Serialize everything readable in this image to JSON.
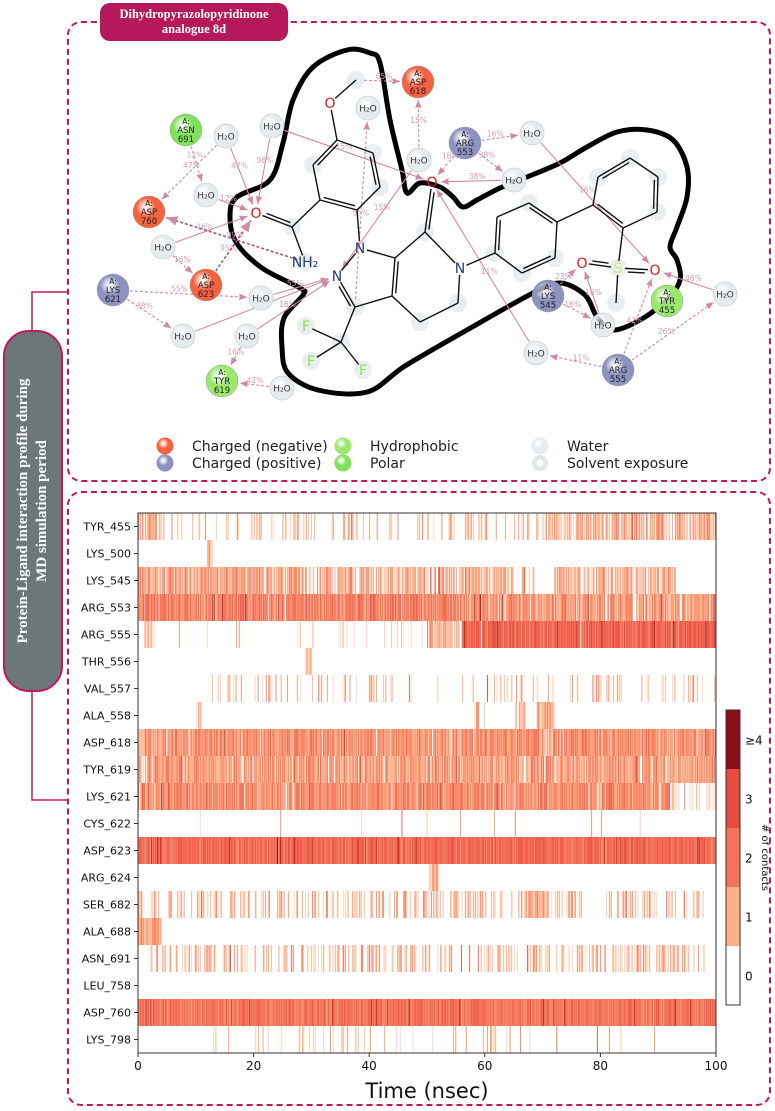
{
  "title_pill": {
    "line1": "Dihydropyrazolopyridinone",
    "line2": "analogue 8d"
  },
  "side_label": {
    "line1": "Protein-Ligand interaction profile during",
    "line2": "MD simulation period"
  },
  "diagram": {
    "colors": {
      "negative": "#f4623f",
      "positive": "#8e92c0",
      "hydrophobic": "#9be86c",
      "polar": "#7ee35a",
      "water": "#e6ebee",
      "interaction": "#d08aa8"
    },
    "residues": [
      {
        "id": "ASN691",
        "chain": "A:",
        "name": "ASN",
        "num": "691",
        "type": "polar"
      },
      {
        "id": "ASP618",
        "chain": "A:",
        "name": "ASP",
        "num": "618",
        "type": "negative"
      },
      {
        "id": "ARG553",
        "chain": "A:",
        "name": "ARG",
        "num": "553",
        "type": "positive"
      },
      {
        "id": "ASP760",
        "chain": "A:",
        "name": "ASP",
        "num": "760",
        "type": "negative"
      },
      {
        "id": "LYS621",
        "chain": "A:",
        "name": "LYS",
        "num": "621",
        "type": "positive"
      },
      {
        "id": "ASP623",
        "chain": "A:",
        "name": "ASP",
        "num": "623",
        "type": "negative"
      },
      {
        "id": "TYR619",
        "chain": "A:",
        "name": "TYR",
        "num": "619",
        "type": "hydrophobic"
      },
      {
        "id": "LYS545",
        "chain": "A:",
        "name": "LYS",
        "num": "545",
        "type": "positive"
      },
      {
        "id": "TYR455",
        "chain": "A:",
        "name": "TYR",
        "num": "455",
        "type": "hydrophobic"
      },
      {
        "id": "ARG555",
        "chain": "A:",
        "name": "ARG",
        "num": "555",
        "type": "positive"
      }
    ],
    "water_label": "H₂O",
    "ligand_atom_labels": [
      "O",
      "",
      "",
      "",
      "",
      "",
      "",
      "",
      "",
      "O",
      "NH₂",
      "N",
      "N",
      "",
      "",
      "",
      "",
      "O",
      "N",
      "",
      "",
      "",
      "F",
      "F",
      "F",
      "",
      "",
      "",
      "",
      "",
      "",
      "",
      "",
      "",
      "",
      "",
      "",
      "S",
      "O",
      "O",
      ""
    ],
    "interactions": [
      {
        "from": "ASN691",
        "to": "w3",
        "pct": "12%"
      },
      {
        "from": "w1",
        "to": "ASP760",
        "pct": "47%"
      },
      {
        "from": "w1",
        "to": "a9",
        "pct": "47%"
      },
      {
        "from": "w3",
        "to": "a9",
        "pct": "12%"
      },
      {
        "from": "w2",
        "to": "a9",
        "pct": "96%"
      },
      {
        "from": "w4",
        "to": "a9",
        "pct": "16%"
      },
      {
        "from": "a10",
        "to": "ASP760",
        "pct": "99%",
        "strong": true
      },
      {
        "from": "ASP623",
        "to": "a9",
        "pct": "95%",
        "strong": true
      },
      {
        "from": "w4",
        "to": "ASP623",
        "pct": "16%"
      },
      {
        "from": "LYS621",
        "to": "w5",
        "pct": "55%"
      },
      {
        "from": "LYS621",
        "to": "w6",
        "pct": "38%"
      },
      {
        "from": "w5",
        "to": "a12",
        "pct": "55%"
      },
      {
        "from": "w6",
        "to": "a12",
        "pct": ""
      },
      {
        "from": "w7",
        "to": "TYR619",
        "pct": "16%"
      },
      {
        "from": "w8",
        "to": "TYR619",
        "pct": "42%"
      },
      {
        "from": "w7",
        "to": "a12",
        "pct": "16%"
      },
      {
        "from": "a13",
        "to": "w9",
        "pct": "55%"
      },
      {
        "from": "w2",
        "to": "a17",
        "pct": "15%"
      },
      {
        "from": "w10",
        "to": "a12",
        "pct": "15%"
      },
      {
        "from": "w10",
        "to": "ASP618",
        "pct": "15%"
      },
      {
        "from": "a1",
        "to": "ASP618",
        "pct": "65%"
      },
      {
        "from": "ARG553",
        "to": "w11",
        "pct": "16%"
      },
      {
        "from": "ARG553",
        "to": "w12",
        "pct": "38%"
      },
      {
        "from": "ARG553",
        "to": "a17",
        "pct": "18%"
      },
      {
        "from": "w12",
        "to": "a17",
        "pct": "38%"
      },
      {
        "from": "w11",
        "to": "a39",
        "pct": "16%"
      },
      {
        "from": "w14",
        "to": "a17",
        "pct": "11%"
      },
      {
        "from": "ARG555",
        "to": "w14",
        "pct": "11%"
      },
      {
        "from": "w13",
        "to": "a38",
        "pct": "16%"
      },
      {
        "from": "LYS545",
        "to": "w13",
        "pct": "16%"
      },
      {
        "from": "LYS545",
        "to": "a38",
        "pct": "23%"
      },
      {
        "from": "ARG555",
        "to": "a39",
        "pct": "42%"
      },
      {
        "from": "ARG555",
        "to": "w15",
        "pct": "26%"
      },
      {
        "from": "w15",
        "to": "a39",
        "pct": "46%"
      }
    ],
    "legend": [
      {
        "label": "Charged (negative)",
        "type": "negative"
      },
      {
        "label": "Charged (positive)",
        "type": "positive"
      },
      {
        "label": "Hydrophobic",
        "type": "hydrophobic"
      },
      {
        "label": "Polar",
        "type": "polar"
      },
      {
        "label": "Water",
        "type": "water"
      },
      {
        "label": "Solvent exposure",
        "type": "solvent"
      }
    ]
  },
  "chart_data": {
    "type": "heatmap",
    "title": "",
    "xlabel": "Time (nsec)",
    "ylabel": "",
    "xlim": [
      0,
      100
    ],
    "xticks": [
      "0",
      "20",
      "40",
      "60",
      "80",
      "100"
    ],
    "rows": [
      "TYR_455",
      "LYS_500",
      "LYS_545",
      "ARG_553",
      "ARG_555",
      "THR_556",
      "VAL_557",
      "ALA_558",
      "ASP_618",
      "TYR_619",
      "LYS_621",
      "CYS_622",
      "ASP_623",
      "ARG_624",
      "SER_682",
      "ALA_688",
      "ASN_691",
      "LEU_758",
      "ASP_760",
      "LYS_798"
    ],
    "row_contact_profile_note_fields": [
      "start_ns",
      "end_ns",
      "contact_fraction",
      "mean_contacts"
    ],
    "row_profiles": [
      [
        [
          0,
          4,
          0.5,
          1.2
        ],
        [
          4,
          70,
          0.12,
          1.1
        ],
        [
          70,
          100,
          0.55,
          1.1
        ]
      ],
      [
        [
          12,
          13,
          0.5,
          1
        ]
      ],
      [
        [
          0,
          28,
          0.7,
          1.3
        ],
        [
          28,
          40,
          0.5,
          1.1
        ],
        [
          40,
          65,
          0.6,
          1.1
        ],
        [
          65,
          72,
          0.1,
          1
        ],
        [
          72,
          93,
          0.6,
          1.1
        ]
      ],
      [
        [
          0,
          55,
          0.85,
          1.8
        ],
        [
          55,
          100,
          0.75,
          1.5
        ]
      ],
      [
        [
          1,
          3,
          0.3,
          1
        ],
        [
          3,
          50,
          0.04,
          1
        ],
        [
          50,
          56,
          0.5,
          1.2
        ],
        [
          56,
          100,
          0.95,
          2.4
        ]
      ],
      [
        [
          29,
          30,
          0.5,
          1
        ]
      ],
      [
        [
          10,
          100,
          0.08,
          1
        ]
      ],
      [
        [
          10,
          11,
          0.5,
          1
        ],
        [
          58,
          60,
          0.4,
          1
        ],
        [
          65,
          67,
          0.4,
          1
        ],
        [
          69,
          72,
          0.7,
          1
        ]
      ],
      [
        [
          0,
          100,
          0.85,
          1.5
        ]
      ],
      [
        [
          0,
          100,
          0.8,
          1.3
        ]
      ],
      [
        [
          0,
          92,
          0.85,
          1.6
        ],
        [
          92,
          100,
          0.15,
          1
        ]
      ],
      [
        [
          10,
          100,
          0.02,
          1
        ]
      ],
      [
        [
          0,
          100,
          1,
          2.2
        ]
      ],
      [
        [
          50,
          52,
          0.5,
          1
        ]
      ],
      [
        [
          0,
          67,
          0.2,
          1.1
        ],
        [
          67,
          71,
          0.9,
          1.2
        ],
        [
          71,
          98,
          0.2,
          1.1
        ]
      ],
      [
        [
          0,
          4,
          0.9,
          1.2
        ]
      ],
      [
        [
          2,
          98,
          0.25,
          1
        ]
      ],
      [],
      [
        [
          0,
          100,
          1,
          2
        ]
      ],
      [
        [
          5,
          90,
          0.06,
          1
        ]
      ]
    ],
    "colorbar": {
      "label": "# of contacts",
      "ticks": [
        "0",
        "1",
        "2",
        "3",
        "≥4"
      ],
      "colors": [
        "#ffffff",
        "#fcb084",
        "#f4735a",
        "#e94b40",
        "#8c0c17"
      ]
    }
  }
}
